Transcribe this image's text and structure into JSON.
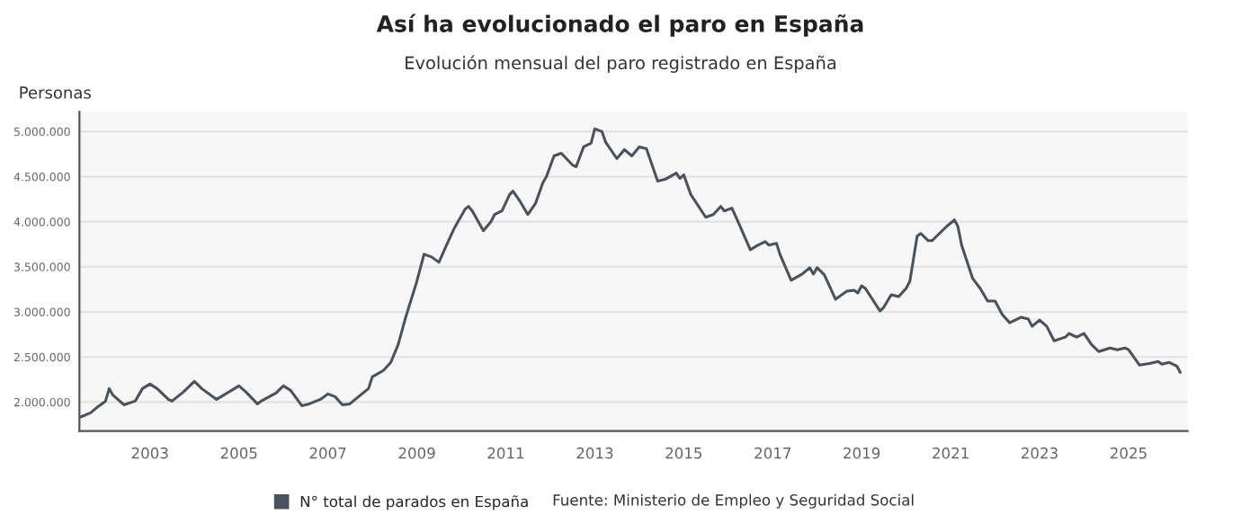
{
  "chart_data": {
    "type": "line",
    "title": "Así ha evolucionado el paro en España",
    "subtitle": "Evolución mensual del paro registrado en España",
    "ylabel": "Personas",
    "annotations": [
      "Fuente: Ministerio de Empleo y Seguridad Social"
    ],
    "legend": "bottom",
    "grid": "y",
    "marker": "none",
    "line_style": "solid",
    "xlim": [
      "2001-06",
      "2026-05"
    ],
    "ylim": [
      1680000,
      5220000
    ],
    "xticks": [
      {
        "value": "2003",
        "label": "2003"
      },
      {
        "value": "2005",
        "label": "2005"
      },
      {
        "value": "2007",
        "label": "2007"
      },
      {
        "value": "2009",
        "label": "2009"
      },
      {
        "value": "2011",
        "label": "2011"
      },
      {
        "value": "2013",
        "label": "2013"
      },
      {
        "value": "2015",
        "label": "2015"
      },
      {
        "value": "2017",
        "label": "2017"
      },
      {
        "value": "2019",
        "label": "2019"
      },
      {
        "value": "2021",
        "label": "2021"
      },
      {
        "value": "2023",
        "label": "2023"
      },
      {
        "value": "2025",
        "label": "2025"
      }
    ],
    "yticks": [
      {
        "value": 2000000,
        "label": "2.000.000"
      },
      {
        "value": 2500000,
        "label": "2.500.000"
      },
      {
        "value": 3000000,
        "label": "3.000.000"
      },
      {
        "value": 3500000,
        "label": "3.500.000"
      },
      {
        "value": 4000000,
        "label": "4.000.000"
      },
      {
        "value": 4500000,
        "label": "4.500.000"
      },
      {
        "value": 5000000,
        "label": "5.000.000"
      }
    ],
    "x": [
      "2001-06",
      "2001-09",
      "2001-11",
      "2002-01",
      "2002-02",
      "2002-03",
      "2002-06",
      "2002-09",
      "2002-11",
      "2003-01",
      "2003-03",
      "2003-06",
      "2003-07",
      "2003-10",
      "2004-01",
      "2004-03",
      "2004-07",
      "2004-09",
      "2004-11",
      "2005-01",
      "2005-03",
      "2005-06",
      "2005-07",
      "2005-11",
      "2006-01",
      "2006-03",
      "2006-06",
      "2006-08",
      "2006-11",
      "2007-01",
      "2007-03",
      "2007-05",
      "2007-07",
      "2007-09",
      "2007-12",
      "2008-01",
      "2008-04",
      "2008-06",
      "2008-08",
      "2008-10",
      "2009-01",
      "2009-03",
      "2009-05",
      "2009-07",
      "2009-09",
      "2009-11",
      "2010-02",
      "2010-03",
      "2010-04",
      "2010-07",
      "2010-09",
      "2010-10",
      "2010-12",
      "2011-02",
      "2011-03",
      "2011-05",
      "2011-07",
      "2011-09",
      "2011-11",
      "2011-12",
      "2012-02",
      "2012-04",
      "2012-07",
      "2012-08",
      "2012-10",
      "2012-12",
      "2013-01",
      "2013-03",
      "2013-04",
      "2013-07",
      "2013-09",
      "2013-11",
      "2014-01",
      "2014-03",
      "2014-06",
      "2014-08",
      "2014-11",
      "2014-12",
      "2015-01",
      "2015-03",
      "2015-07",
      "2015-09",
      "2015-11",
      "2015-12",
      "2016-02",
      "2016-04",
      "2016-07",
      "2016-09",
      "2016-11",
      "2016-12",
      "2017-02",
      "2017-03",
      "2017-06",
      "2017-09",
      "2017-11",
      "2017-12",
      "2018-01",
      "2018-03",
      "2018-06",
      "2018-09",
      "2018-11",
      "2018-12",
      "2019-01",
      "2019-02",
      "2019-06",
      "2019-07",
      "2019-09",
      "2019-11",
      "2020-01",
      "2020-02",
      "2020-04",
      "2020-05",
      "2020-07",
      "2020-08",
      "2020-10",
      "2020-12",
      "2021-02",
      "2021-03",
      "2021-04",
      "2021-07",
      "2021-09",
      "2021-11",
      "2022-01",
      "2022-03",
      "2022-05",
      "2022-08",
      "2022-10",
      "2022-11",
      "2023-01",
      "2023-03",
      "2023-05",
      "2023-08",
      "2023-09",
      "2023-11",
      "2024-01",
      "2024-03",
      "2024-05",
      "2024-08",
      "2024-10",
      "2024-12",
      "2025-01",
      "2025-04",
      "2025-07",
      "2025-09",
      "2025-10",
      "2025-12",
      "2026-02",
      "2026-03"
    ],
    "series": [
      {
        "name": "N° total de parados en España",
        "color": "#4a525c",
        "values": [
          1830000,
          1880000,
          1950000,
          2010000,
          2150000,
          2080000,
          1970000,
          2010000,
          2150000,
          2200000,
          2150000,
          2030000,
          2010000,
          2110000,
          2230000,
          2150000,
          2030000,
          2080000,
          2130000,
          2180000,
          2110000,
          1980000,
          2010000,
          2100000,
          2180000,
          2130000,
          1960000,
          1980000,
          2030000,
          2090000,
          2060000,
          1970000,
          1980000,
          2050000,
          2150000,
          2280000,
          2350000,
          2440000,
          2640000,
          2940000,
          3340000,
          3640000,
          3610000,
          3550000,
          3740000,
          3920000,
          4140000,
          4170000,
          4120000,
          3900000,
          4000000,
          4080000,
          4120000,
          4300000,
          4340000,
          4220000,
          4080000,
          4200000,
          4430000,
          4500000,
          4730000,
          4760000,
          4630000,
          4610000,
          4830000,
          4870000,
          5030000,
          5000000,
          4880000,
          4700000,
          4800000,
          4730000,
          4830000,
          4810000,
          4450000,
          4470000,
          4540000,
          4480000,
          4520000,
          4300000,
          4050000,
          4080000,
          4170000,
          4120000,
          4150000,
          3970000,
          3690000,
          3740000,
          3780000,
          3740000,
          3760000,
          3640000,
          3350000,
          3420000,
          3490000,
          3420000,
          3490000,
          3410000,
          3140000,
          3230000,
          3240000,
          3210000,
          3290000,
          3260000,
          3010000,
          3050000,
          3190000,
          3170000,
          3260000,
          3340000,
          3840000,
          3870000,
          3790000,
          3790000,
          3870000,
          3950000,
          4020000,
          3950000,
          3740000,
          3370000,
          3260000,
          3120000,
          3120000,
          2970000,
          2880000,
          2940000,
          2920000,
          2840000,
          2910000,
          2840000,
          2680000,
          2720000,
          2760000,
          2720000,
          2760000,
          2640000,
          2560000,
          2600000,
          2580000,
          2600000,
          2580000,
          2410000,
          2430000,
          2450000,
          2420000,
          2440000,
          2400000,
          2330000
        ]
      }
    ]
  }
}
